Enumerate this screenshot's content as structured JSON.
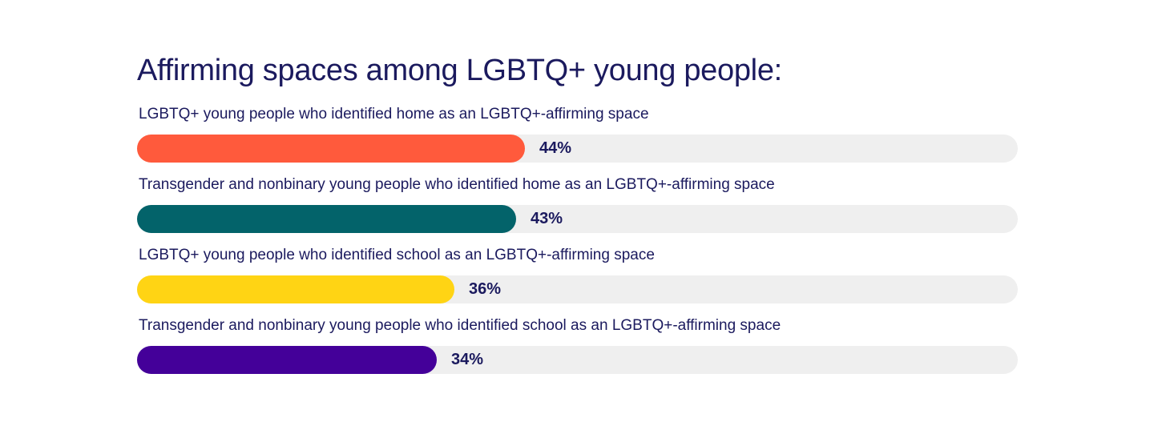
{
  "chart_data": {
    "type": "bar",
    "orientation": "horizontal",
    "title": "Affirming spaces among LGBTQ+ young people:",
    "xlim": [
      0,
      100
    ],
    "grid": false,
    "legend": "none",
    "value_unit": "%",
    "categories": [
      "LGBTQ+ young people who identified home as an LGBTQ+-affirming space",
      "Transgender and nonbinary young people who identified home as an LGBTQ+-affirming space",
      "LGBTQ+ young people who identified school as an LGBTQ+-affirming space",
      "Transgender and nonbinary young people who identified school as an LGBTQ+-affirming space"
    ],
    "values": [
      44,
      43,
      36,
      34
    ],
    "value_labels": [
      "44%",
      "43%",
      "36%",
      "34%"
    ],
    "colors": [
      "#ff5a3c",
      "#03636a",
      "#ffd414",
      "#440099"
    ],
    "track_color": "#efefef"
  }
}
